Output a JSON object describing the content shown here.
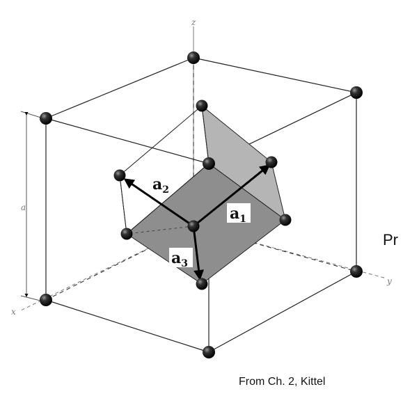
{
  "diagram": {
    "axes": {
      "x": "x",
      "y": "y",
      "z": "z"
    },
    "edge_label": "a",
    "vectors": [
      {
        "base": "a",
        "sub": "2"
      },
      {
        "base": "a",
        "sub": "1"
      },
      {
        "base": "a",
        "sub": "3"
      }
    ]
  },
  "caption": "From Ch. 2, Kittel",
  "side_text": "Pr"
}
